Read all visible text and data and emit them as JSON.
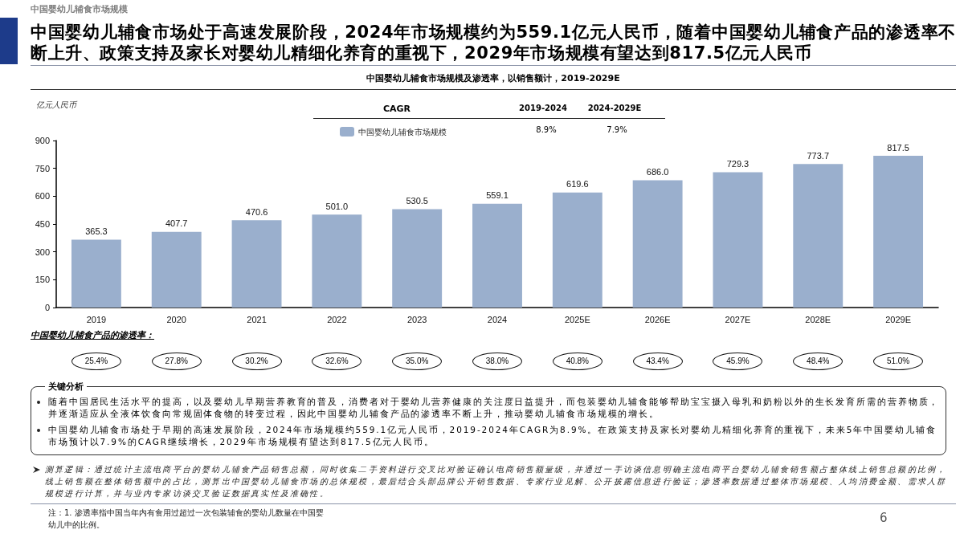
{
  "chart_data": {
    "type": "bar",
    "title": "中国婴幼儿辅食市场处于高速发展阶段，2024年市场规模约为559.1亿元人民币，随着中国婴幼儿辅食产品的渗透率不断上升、政策支持及家长对婴幼儿精细化养育的重视下，2029年市场规模有望达到817.5亿元人民币",
    "subtitle": "中国婴幼儿辅食市场规模及渗透率，以销售额计，2019-2029E",
    "ylabel": "亿元人民币",
    "categories": [
      "2019",
      "2020",
      "2021",
      "2022",
      "2023",
      "2024",
      "2025E",
      "2026E",
      "2027E",
      "2028E",
      "2029E"
    ],
    "series": [
      {
        "name": "中国婴幼儿辅食市场规模",
        "color": "#9aafcd",
        "values": [
          365.3,
          407.7,
          470.6,
          501.0,
          530.5,
          559.1,
          619.6,
          686.0,
          729.3,
          773.7,
          817.5
        ],
        "value_labels": [
          "365.3",
          "407.7",
          "470.6",
          "501.0",
          "530.5",
          "559.1",
          "619.6",
          "686.0",
          "729.3",
          "773.7",
          "817.5"
        ]
      }
    ],
    "ylim": [
      0,
      900
    ],
    "yticks": [
      0,
      150,
      300,
      450,
      600,
      750,
      900
    ],
    "grid": false,
    "legend": "top",
    "annotations": [
      "中国婴幼儿辅食市场规模",
      "CAGR",
      "2019-2024",
      "2024-2029E",
      "8.9%",
      "7.9%",
      "中国婴幼儿辅食产品的渗透率：",
      "25.4%",
      "27.8%",
      "30.2%",
      "32.6%",
      "35.0%",
      "38.0%",
      "40.8%",
      "43.4%",
      "45.9%",
      "48.4%",
      "51.0%",
      "关键分析",
      "随着中国居民生活水平的提高，以及婴幼儿早期营养教育的普及，消费者对于婴幼儿营养健康的关注度日益提升，而包装婴幼儿辅食能够帮助宝宝摄入母乳和奶粉以外的生长发育所需的营养物质，并逐渐适应从全液体饮食向常规固体食物的转变过程，因此中国婴幼儿辅食产品的渗透率不断上升，推动婴幼儿辅食市场规模的增长。",
      "中国婴幼儿辅食市场处于早期的高速发展阶段，2024年市场规模约559.1亿元人民币，2019-2024年CAGR为8.9%。在政策支持及家长对婴幼儿精细化养育的重视下，未来5年中国婴幼儿辅食市场预计以7.9%的CAGR继续增长，2029年市场规模有望达到817.5亿元人民币。",
      "测算逻辑：通过统计主流电商平台的婴幼儿辅食产品销售总额，同时收集二手资料进行交叉比对验证确认电商销售额量级，并通过一手访谈信息明确主流电商平台婴幼儿辅食销售额占整体线上销售总额的比例，线上销售额在整体销售额中的占比，测算出中国婴幼儿辅食市场的总体规模，最后结合头部品牌公开销售数据、专家行业见解、公开披露信息进行验证；渗透率数据通过整体市场规模、人均消费金额、需求人群规模进行计算，并与业内专家访谈交叉验证数据真实性及准确性。",
      "注：1. 渗透率指中国当年内有食用过超过一次包装辅食的婴幼儿数量在中国婴幼儿中的比例。",
      "6"
    ]
  }
}
